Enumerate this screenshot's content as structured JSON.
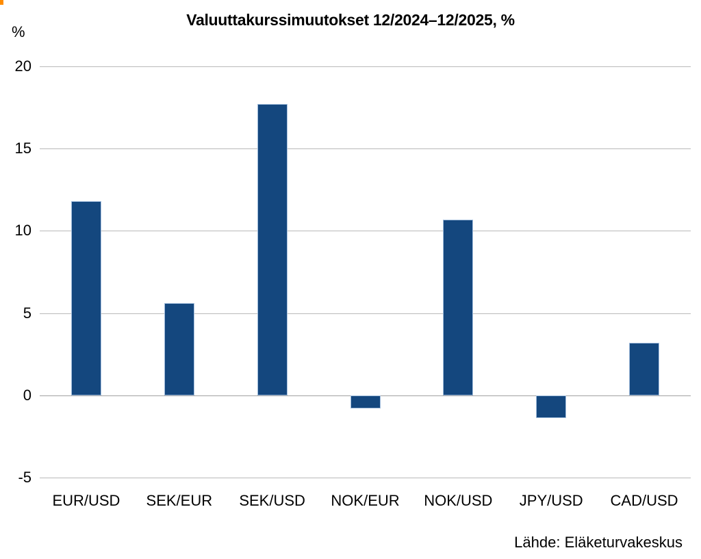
{
  "page": {
    "corner_mark_color": "#ff8c00",
    "background_color": "#ffffff",
    "text_color": "#000000"
  },
  "chart_data": {
    "type": "bar",
    "title": "Valuuttakurssimuutokset 12/2024–12/2025, %",
    "ylabel": "%",
    "xlabel": "",
    "source": "Lähde: Eläketurvakeskus",
    "categories": [
      "EUR/USD",
      "SEK/EUR",
      "SEK/USD",
      "NOK/EUR",
      "NOK/USD",
      "JPY/USD",
      "CAD/USD"
    ],
    "values": [
      11.8,
      5.6,
      17.7,
      -0.8,
      10.7,
      -1.4,
      3.2
    ],
    "ylim": [
      -5,
      20
    ],
    "yticks": [
      20,
      15,
      10,
      5,
      0,
      -5
    ],
    "grid": true,
    "legend_position": "none",
    "bar_color": "#14477e",
    "bar_border_color": "#a3bedd",
    "grid_color": "#b9b9b9",
    "zero_line_color": "#a0a0a0"
  }
}
